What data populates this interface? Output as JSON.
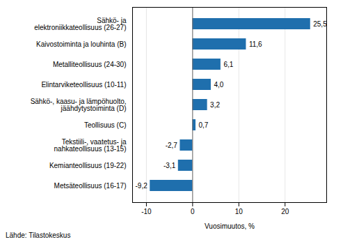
{
  "chart_data": {
    "type": "bar",
    "orientation": "horizontal",
    "categories": [
      "Metsäteollisuus (16-17)",
      "Kemianteollisuus (19-22)",
      "Tekstiili-, vaatetus- ja\nnahkateollisuus (13-15)",
      "Teollisuus (C)",
      "Sähkö-, kaasu- ja lämpöhuolto,\njäähdytystoiminta (D)",
      "Elintarviketeollisuus (10-11)",
      "Metalliteollisuus (24-30)",
      "Kaivostoiminta ja louhinta (B)",
      "Sähkö- ja\nelektroniikkateollisuus (26-27)"
    ],
    "values": [
      -9.2,
      -3.1,
      -2.7,
      0.7,
      3.2,
      4.0,
      6.1,
      11.6,
      25.5
    ],
    "value_labels": [
      "-9,2",
      "-3,1",
      "-2,7",
      "0,7",
      "3,2",
      "4,0",
      "6,1",
      "11,6",
      "25,5"
    ],
    "data_labels": true,
    "color": "#1f6fad",
    "x_label": "Vuosimuutos, %",
    "source": "Lähde: Tilastokeskus",
    "xlim": [
      -13,
      29
    ],
    "xticks": [
      -10,
      0,
      10,
      20
    ],
    "grid": true
  }
}
